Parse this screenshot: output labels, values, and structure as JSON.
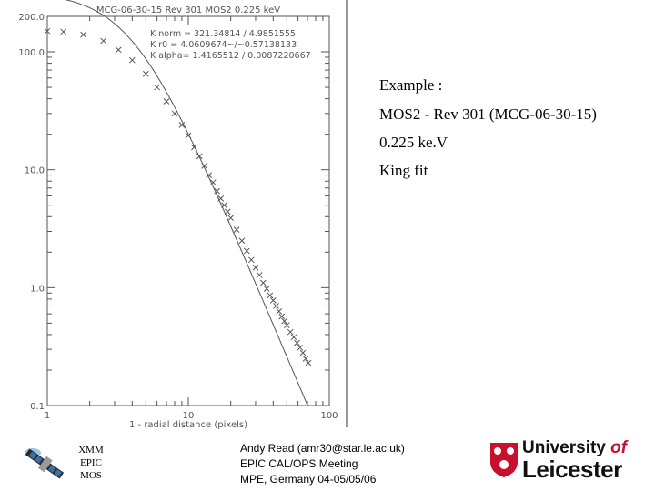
{
  "notes": {
    "line1": "Example :",
    "line2": "MOS2  - Rev 301 (MCG-06-30-15)",
    "line3": "0.225 ke.V",
    "line4": "King fit"
  },
  "footer": {
    "labels": [
      "XMM",
      "EPIC",
      "MOS"
    ],
    "credit_1": "Andy Read (amr30@star.le.ac.uk)",
    "credit_2": "EPIC CAL/OPS Meeting",
    "credit_3": "MPE, Germany 04-05/05/06",
    "university_line1": "University",
    "university_of": "of",
    "university_line2": "Leicester"
  },
  "colors": {
    "plot_fg": "#555555",
    "accent_red": "#c8102e",
    "satellite_blue": "#3a6ea5"
  },
  "icons": {
    "satellite": "xmm-satellite-icon",
    "crest": "university-crest-icon"
  },
  "chart_data": {
    "type": "scatter",
    "title": "MCG-06-30-15 Rev 301 MOS2 0.225 keV",
    "fit_params": [
      {
        "name": "K norm",
        "text": "K norm  =  321.34814  /  4.9851555"
      },
      {
        "name": "K r0",
        "text": "K r0    =  4.0609674~/~0.57138133"
      },
      {
        "name": "K alpha",
        "text": "K alpha=  1.4165512 / 0.0087220667"
      }
    ],
    "xlabel": "1 - radial distance (pixels)",
    "ylabel": "",
    "x_scale": "log",
    "y_scale": "log",
    "xlim": [
      1,
      100
    ],
    "ylim": [
      0.1,
      200
    ],
    "x_ticks": [
      1,
      10,
      100
    ],
    "x_tick_labels": [
      "1",
      "10",
      "100"
    ],
    "y_ticks": [
      0.1,
      1,
      10,
      100,
      200
    ],
    "y_tick_labels": [
      "0.1",
      "1.0",
      "10.0",
      "100.0",
      "200.0"
    ],
    "model": {
      "name": "King fit",
      "norm": 321.34814,
      "r0": 4.0609674,
      "alpha": 1.4165512
    },
    "series": [
      {
        "x": [
          1.0,
          1.3,
          1.8,
          2.5,
          3.2,
          4.0,
          5.0,
          6.0,
          7.0,
          8.0,
          9.0,
          10.0,
          11.0,
          12.0,
          13.0,
          14.0,
          15.0,
          16.0,
          17.0,
          18.0,
          19.0,
          20.0,
          22.0,
          24.0,
          26.0,
          28.0,
          30.0,
          32.0,
          34.0,
          36.0,
          38.0,
          40.0,
          42.0,
          44.0,
          46.0,
          48.0,
          50.0,
          53.0,
          56.0,
          59.0,
          62.0,
          65.0,
          68.0,
          71.0
        ],
        "y": [
          150,
          148,
          140,
          124,
          104,
          85,
          65,
          50,
          38,
          30,
          24,
          19.5,
          15.5,
          13,
          10.8,
          9.0,
          7.8,
          6.6,
          5.7,
          5.0,
          4.4,
          3.9,
          3.1,
          2.5,
          2.05,
          1.72,
          1.48,
          1.28,
          1.1,
          0.98,
          0.86,
          0.78,
          0.7,
          0.63,
          0.57,
          0.52,
          0.48,
          0.42,
          0.38,
          0.34,
          0.31,
          0.28,
          0.25,
          0.23
        ]
      }
    ]
  }
}
